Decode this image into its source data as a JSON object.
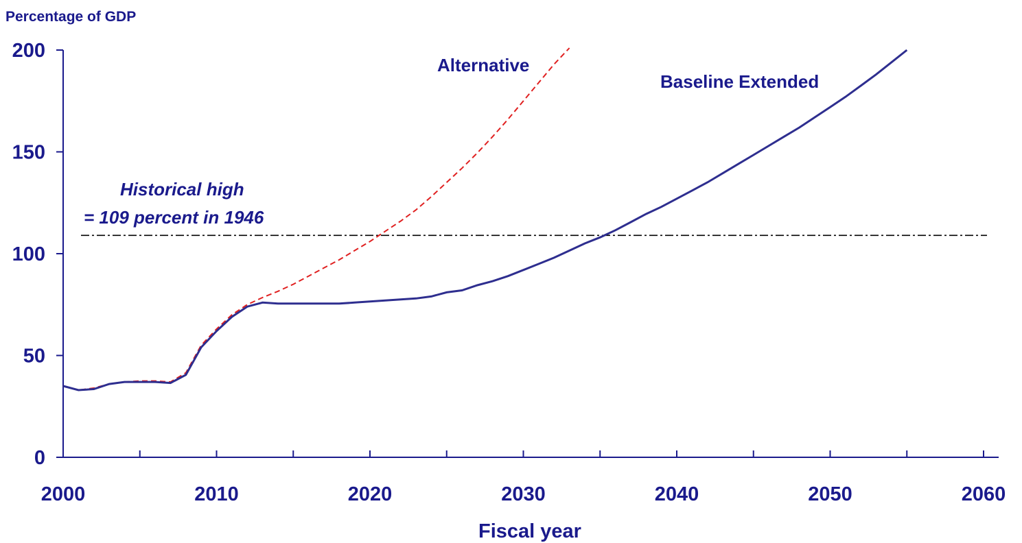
{
  "chart_data": {
    "type": "line",
    "ylabel": "Percentage of GDP",
    "xlabel": "Fiscal year",
    "xlim": [
      2000,
      2060
    ],
    "ylim": [
      0,
      200
    ],
    "x_ticks": [
      2000,
      2010,
      2020,
      2030,
      2040,
      2050,
      2060
    ],
    "y_ticks": [
      0,
      50,
      100,
      150,
      200
    ],
    "colors": {
      "text": "#1a1a8c",
      "baseline": "#2e2e8f",
      "alternative": "#e02020",
      "reference": "#000000"
    },
    "series": [
      {
        "name": "Baseline Extended",
        "style": "solid",
        "points": [
          [
            2000,
            35
          ],
          [
            2001,
            33
          ],
          [
            2002,
            33.5
          ],
          [
            2003,
            36
          ],
          [
            2004,
            37
          ],
          [
            2005,
            37
          ],
          [
            2006,
            37
          ],
          [
            2007,
            36.5
          ],
          [
            2008,
            40.5
          ],
          [
            2009,
            54
          ],
          [
            2010,
            62
          ],
          [
            2011,
            69
          ],
          [
            2012,
            74
          ],
          [
            2013,
            76
          ],
          [
            2014,
            75.5
          ],
          [
            2015,
            75.5
          ],
          [
            2016,
            75.5
          ],
          [
            2017,
            75.5
          ],
          [
            2018,
            75.5
          ],
          [
            2019,
            76
          ],
          [
            2020,
            76.5
          ],
          [
            2021,
            77
          ],
          [
            2022,
            77.5
          ],
          [
            2023,
            78
          ],
          [
            2024,
            79
          ],
          [
            2025,
            81
          ],
          [
            2026,
            82
          ],
          [
            2027,
            84.5
          ],
          [
            2028,
            86.5
          ],
          [
            2029,
            89
          ],
          [
            2030,
            92
          ],
          [
            2031,
            95
          ],
          [
            2032,
            98
          ],
          [
            2033,
            101.5
          ],
          [
            2034,
            105
          ],
          [
            2035,
            108
          ],
          [
            2036,
            111.5
          ],
          [
            2037,
            115.5
          ],
          [
            2038,
            119.5
          ],
          [
            2039,
            123
          ],
          [
            2040,
            127
          ],
          [
            2041,
            131
          ],
          [
            2042,
            135
          ],
          [
            2043,
            139.5
          ],
          [
            2044,
            144
          ],
          [
            2045,
            148.5
          ],
          [
            2046,
            153
          ],
          [
            2047,
            157.5
          ],
          [
            2048,
            162
          ],
          [
            2049,
            167
          ],
          [
            2050,
            172
          ],
          [
            2051,
            177
          ],
          [
            2052,
            182.5
          ],
          [
            2053,
            188
          ],
          [
            2054,
            194
          ],
          [
            2055,
            200
          ]
        ]
      },
      {
        "name": "Alternative",
        "style": "dashed",
        "points": [
          [
            2000,
            35
          ],
          [
            2001,
            33
          ],
          [
            2002,
            34
          ],
          [
            2003,
            36
          ],
          [
            2004,
            37
          ],
          [
            2005,
            37.5
          ],
          [
            2006,
            37.5
          ],
          [
            2007,
            37
          ],
          [
            2008,
            41.5
          ],
          [
            2009,
            55
          ],
          [
            2010,
            63
          ],
          [
            2011,
            70
          ],
          [
            2012,
            75
          ],
          [
            2013,
            78.5
          ],
          [
            2014,
            81.5
          ],
          [
            2015,
            85
          ],
          [
            2016,
            89
          ],
          [
            2017,
            93
          ],
          [
            2018,
            97
          ],
          [
            2019,
            101.5
          ],
          [
            2020,
            106
          ],
          [
            2021,
            111
          ],
          [
            2022,
            116
          ],
          [
            2023,
            121.5
          ],
          [
            2024,
            128
          ],
          [
            2025,
            135
          ],
          [
            2026,
            142
          ],
          [
            2027,
            149.5
          ],
          [
            2028,
            157.5
          ],
          [
            2029,
            166
          ],
          [
            2030,
            175
          ],
          [
            2031,
            184
          ],
          [
            2032,
            193
          ],
          [
            2033,
            201
          ]
        ]
      }
    ],
    "reference_line": {
      "y": 109,
      "style": "dash-dot"
    },
    "annotations": {
      "alternative": "Alternative",
      "baseline": "Baseline Extended",
      "historical_line1": "Historical high",
      "historical_line2": "= 109 percent in 1946"
    }
  }
}
